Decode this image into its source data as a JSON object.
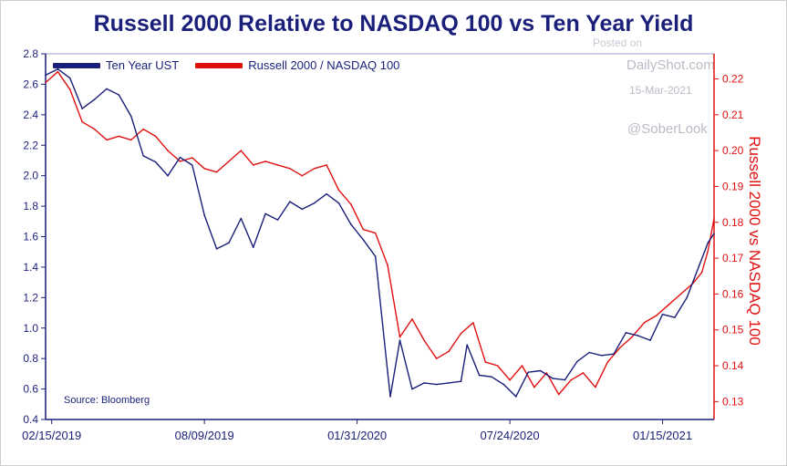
{
  "header": {
    "title": "Russell 2000 Relative to NASDAQ 100 vs Ten Year Yield"
  },
  "watermark": {
    "posted": "Posted on",
    "site": "DailyShot.com",
    "date": "15-Mar-2021",
    "handle": "@SoberLook"
  },
  "source": "Source: Bloomberg",
  "colors": {
    "ust": "#1a1f7a",
    "ratio": "#e01010",
    "axis": "#1a1f7a"
  },
  "chart_data": {
    "type": "line",
    "title": "Russell 2000 Relative to NASDAQ 100 vs Ten Year Yield",
    "xlabel": "",
    "ylabel": "",
    "y2label": "Russell 2000 vs NASDAQ 100",
    "x_tick_labels": [
      "02/15/2019",
      "08/09/2019",
      "01/31/2020",
      "07/24/2020",
      "01/15/2021"
    ],
    "x_range": [
      "2019-02-08",
      "2021-03-15"
    ],
    "ylim": [
      0.4,
      2.8
    ],
    "y_ticks": [
      "0.4",
      "0.6",
      "0.8",
      "1.0",
      "1.2",
      "1.4",
      "1.6",
      "1.8",
      "2.0",
      "2.2",
      "2.4",
      "2.6",
      "2.8"
    ],
    "y2lim": [
      0.125,
      0.227
    ],
    "y2_ticks": [
      "0.13",
      "0.14",
      "0.15",
      "0.16",
      "0.17",
      "0.18",
      "0.19",
      "0.20",
      "0.21",
      "0.22"
    ],
    "grid": false,
    "legend_placement": "top-left",
    "series": [
      {
        "name": "Ten Year UST",
        "axis": "left",
        "points": [
          [
            "2019-02-08",
            2.66
          ],
          [
            "2019-02-22",
            2.7
          ],
          [
            "2019-03-08",
            2.64
          ],
          [
            "2019-03-22",
            2.44
          ],
          [
            "2019-04-05",
            2.5
          ],
          [
            "2019-04-19",
            2.57
          ],
          [
            "2019-05-03",
            2.53
          ],
          [
            "2019-05-17",
            2.39
          ],
          [
            "2019-05-31",
            2.13
          ],
          [
            "2019-06-14",
            2.09
          ],
          [
            "2019-06-28",
            2.0
          ],
          [
            "2019-07-12",
            2.12
          ],
          [
            "2019-07-26",
            2.07
          ],
          [
            "2019-08-09",
            1.74
          ],
          [
            "2019-08-23",
            1.52
          ],
          [
            "2019-09-06",
            1.56
          ],
          [
            "2019-09-20",
            1.72
          ],
          [
            "2019-10-04",
            1.53
          ],
          [
            "2019-10-18",
            1.75
          ],
          [
            "2019-11-01",
            1.71
          ],
          [
            "2019-11-15",
            1.83
          ],
          [
            "2019-11-29",
            1.78
          ],
          [
            "2019-12-13",
            1.82
          ],
          [
            "2019-12-27",
            1.88
          ],
          [
            "2020-01-10",
            1.82
          ],
          [
            "2020-01-24",
            1.68
          ],
          [
            "2020-02-07",
            1.58
          ],
          [
            "2020-02-21",
            1.47
          ],
          [
            "2020-03-06",
            0.71
          ],
          [
            "2020-03-09",
            0.55
          ],
          [
            "2020-03-20",
            0.92
          ],
          [
            "2020-04-03",
            0.6
          ],
          [
            "2020-04-17",
            0.64
          ],
          [
            "2020-05-01",
            0.63
          ],
          [
            "2020-05-15",
            0.64
          ],
          [
            "2020-05-29",
            0.65
          ],
          [
            "2020-06-05",
            0.89
          ],
          [
            "2020-06-19",
            0.69
          ],
          [
            "2020-07-03",
            0.68
          ],
          [
            "2020-07-17",
            0.63
          ],
          [
            "2020-07-31",
            0.55
          ],
          [
            "2020-08-14",
            0.71
          ],
          [
            "2020-08-28",
            0.72
          ],
          [
            "2020-09-11",
            0.67
          ],
          [
            "2020-09-25",
            0.66
          ],
          [
            "2020-10-09",
            0.78
          ],
          [
            "2020-10-23",
            0.84
          ],
          [
            "2020-11-06",
            0.82
          ],
          [
            "2020-11-20",
            0.83
          ],
          [
            "2020-12-04",
            0.97
          ],
          [
            "2020-12-18",
            0.95
          ],
          [
            "2021-01-01",
            0.92
          ],
          [
            "2021-01-15",
            1.09
          ],
          [
            "2021-01-29",
            1.07
          ],
          [
            "2021-02-12",
            1.2
          ],
          [
            "2021-02-26",
            1.41
          ],
          [
            "2021-03-08",
            1.56
          ],
          [
            "2021-03-15",
            1.62
          ]
        ]
      },
      {
        "name": "Russell 2000 / NASDAQ 100",
        "axis": "right",
        "points": [
          [
            "2019-02-08",
            0.219
          ],
          [
            "2019-02-22",
            0.222
          ],
          [
            "2019-03-08",
            0.217
          ],
          [
            "2019-03-22",
            0.208
          ],
          [
            "2019-04-05",
            0.206
          ],
          [
            "2019-04-19",
            0.203
          ],
          [
            "2019-05-03",
            0.204
          ],
          [
            "2019-05-17",
            0.203
          ],
          [
            "2019-05-31",
            0.206
          ],
          [
            "2019-06-14",
            0.204
          ],
          [
            "2019-06-28",
            0.2
          ],
          [
            "2019-07-12",
            0.197
          ],
          [
            "2019-07-26",
            0.198
          ],
          [
            "2019-08-09",
            0.195
          ],
          [
            "2019-08-23",
            0.194
          ],
          [
            "2019-09-06",
            0.197
          ],
          [
            "2019-09-20",
            0.2
          ],
          [
            "2019-10-04",
            0.196
          ],
          [
            "2019-10-18",
            0.197
          ],
          [
            "2019-11-01",
            0.196
          ],
          [
            "2019-11-15",
            0.195
          ],
          [
            "2019-11-29",
            0.193
          ],
          [
            "2019-12-13",
            0.195
          ],
          [
            "2019-12-27",
            0.196
          ],
          [
            "2020-01-10",
            0.189
          ],
          [
            "2020-01-24",
            0.185
          ],
          [
            "2020-02-07",
            0.178
          ],
          [
            "2020-02-21",
            0.177
          ],
          [
            "2020-03-06",
            0.168
          ],
          [
            "2020-03-20",
            0.148
          ],
          [
            "2020-04-03",
            0.153
          ],
          [
            "2020-04-17",
            0.147
          ],
          [
            "2020-05-01",
            0.142
          ],
          [
            "2020-05-15",
            0.144
          ],
          [
            "2020-05-29",
            0.149
          ],
          [
            "2020-06-12",
            0.152
          ],
          [
            "2020-06-26",
            0.141
          ],
          [
            "2020-07-10",
            0.14
          ],
          [
            "2020-07-24",
            0.136
          ],
          [
            "2020-08-07",
            0.14
          ],
          [
            "2020-08-21",
            0.134
          ],
          [
            "2020-09-04",
            0.138
          ],
          [
            "2020-09-18",
            0.132
          ],
          [
            "2020-10-02",
            0.136
          ],
          [
            "2020-10-16",
            0.138
          ],
          [
            "2020-10-30",
            0.134
          ],
          [
            "2020-11-13",
            0.141
          ],
          [
            "2020-11-27",
            0.145
          ],
          [
            "2020-12-11",
            0.148
          ],
          [
            "2020-12-25",
            0.152
          ],
          [
            "2021-01-08",
            0.154
          ],
          [
            "2021-01-22",
            0.157
          ],
          [
            "2021-02-05",
            0.16
          ],
          [
            "2021-02-19",
            0.163
          ],
          [
            "2021-03-01",
            0.166
          ],
          [
            "2021-03-08",
            0.172
          ],
          [
            "2021-03-15",
            0.181
          ]
        ]
      }
    ]
  }
}
